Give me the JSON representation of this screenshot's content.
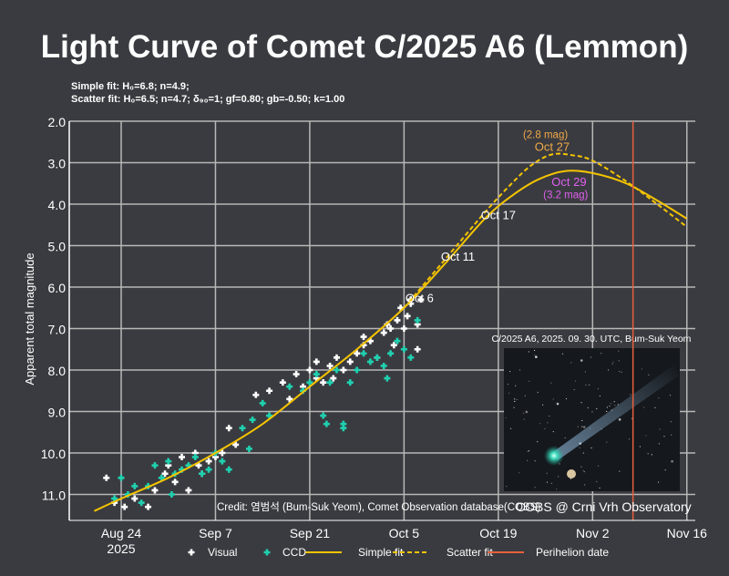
{
  "chart_data": {
    "type": "scatter",
    "title": "Light Curve of Comet C/2025 A6 (Lemmon)",
    "subtitle_lines": [
      "Simple fit: H₀=6.8; n=4.9;",
      "Scatter fit: H₀=6.5; n=4.7; δ₉₀=1; gf=0.80; gb=-0.50; k=1.00"
    ],
    "ylabel": "Apparent total magnitude",
    "xlabel": "",
    "x_units": "days since 2025-08-24",
    "xlim": [
      -8,
      85
    ],
    "ylim": [
      11.6,
      2.0
    ],
    "y_inverted": true,
    "grid": true,
    "y_ticks": [
      "2.0",
      "3.0",
      "4.0",
      "5.0",
      "6.0",
      "7.0",
      "8.0",
      "9.0",
      "10.0",
      "11.0"
    ],
    "x_ticks": [
      {
        "day": 0,
        "label": "Aug 24",
        "sublabel": "2025"
      },
      {
        "day": 14,
        "label": "Sep 7"
      },
      {
        "day": 28,
        "label": "Sep 21"
      },
      {
        "day": 42,
        "label": "Oct 5"
      },
      {
        "day": 56,
        "label": "Oct 19"
      },
      {
        "day": 70,
        "label": "Nov 2"
      },
      {
        "day": 84,
        "label": "Nov 16"
      }
    ],
    "series": [
      {
        "name": "Visual",
        "kind": "points",
        "color": "#ffffff",
        "points": [
          [
            -2.2,
            10.6
          ],
          [
            -1,
            11.2
          ],
          [
            0.5,
            11.3
          ],
          [
            2,
            11.1
          ],
          [
            4,
            11.3
          ],
          [
            5,
            10.9
          ],
          [
            6.5,
            10.5
          ],
          [
            7,
            10.3
          ],
          [
            8,
            10.7
          ],
          [
            9,
            10.1
          ],
          [
            10,
            10.9
          ],
          [
            11,
            10.0
          ],
          [
            11.5,
            10.3
          ],
          [
            12,
            10.5
          ],
          [
            13,
            10.2
          ],
          [
            14,
            10.1
          ],
          [
            15,
            10.0
          ],
          [
            16,
            9.4
          ],
          [
            17,
            9.8
          ],
          [
            20,
            8.6
          ],
          [
            22,
            8.5
          ],
          [
            24,
            8.3
          ],
          [
            25,
            8.7
          ],
          [
            26,
            8.1
          ],
          [
            27,
            8.4
          ],
          [
            28,
            8.0
          ],
          [
            29,
            8.2
          ],
          [
            29,
            7.8
          ],
          [
            30,
            8.3
          ],
          [
            31,
            7.9
          ],
          [
            31.5,
            8.2
          ],
          [
            32,
            7.7
          ],
          [
            33,
            8.0
          ],
          [
            34,
            7.8
          ],
          [
            35,
            7.6
          ],
          [
            36,
            7.4
          ],
          [
            36,
            7.2
          ],
          [
            37,
            7.3
          ],
          [
            38,
            7.7
          ],
          [
            39,
            7.1
          ],
          [
            39.5,
            6.9
          ],
          [
            40,
            7.0
          ],
          [
            40.5,
            7.4
          ],
          [
            41,
            6.8
          ],
          [
            41.5,
            6.5
          ],
          [
            42,
            7.0
          ],
          [
            42.5,
            6.7
          ],
          [
            43,
            6.4
          ],
          [
            43,
            6.3
          ],
          [
            44,
            6.9
          ],
          [
            44,
            7.5
          ],
          [
            44.5,
            6.3
          ]
        ]
      },
      {
        "name": "CCD",
        "kind": "points",
        "color": "#1fd1b0",
        "points": [
          [
            -1,
            11.1
          ],
          [
            0,
            10.6
          ],
          [
            1,
            11.0
          ],
          [
            2,
            10.8
          ],
          [
            3,
            11.2
          ],
          [
            4,
            10.8
          ],
          [
            5,
            10.3
          ],
          [
            6,
            10.6
          ],
          [
            7,
            10.2
          ],
          [
            7.5,
            11.0
          ],
          [
            8,
            10.5
          ],
          [
            9,
            10.4
          ],
          [
            10,
            10.3
          ],
          [
            11,
            10.1
          ],
          [
            12,
            10.5
          ],
          [
            13,
            10.4
          ],
          [
            14,
            10.0
          ],
          [
            15,
            10.2
          ],
          [
            16,
            10.4
          ],
          [
            18,
            9.4
          ],
          [
            19,
            9.9
          ],
          [
            19.5,
            9.2
          ],
          [
            21,
            8.8
          ],
          [
            22,
            9.1
          ],
          [
            25,
            8.4
          ],
          [
            27,
            8.5
          ],
          [
            28,
            8.3
          ],
          [
            29,
            8.1
          ],
          [
            30,
            9.1
          ],
          [
            30.5,
            9.3
          ],
          [
            31,
            8.3
          ],
          [
            32,
            8.0
          ],
          [
            33,
            9.4
          ],
          [
            33,
            9.3
          ],
          [
            34,
            8.3
          ],
          [
            35,
            8.0
          ],
          [
            36,
            7.6
          ],
          [
            37,
            7.8
          ],
          [
            38,
            7.7
          ],
          [
            39,
            7.9
          ],
          [
            39.5,
            8.2
          ],
          [
            40,
            7.6
          ],
          [
            41,
            7.3
          ],
          [
            42,
            7.5
          ],
          [
            43,
            7.7
          ],
          [
            44,
            6.8
          ]
        ]
      },
      {
        "name": "Simple fit",
        "kind": "line",
        "color": "#f5c400",
        "dash": false,
        "points": [
          [
            -4,
            11.4
          ],
          [
            0,
            11.1
          ],
          [
            7,
            10.6
          ],
          [
            14,
            10.0
          ],
          [
            21,
            9.3
          ],
          [
            28,
            8.4
          ],
          [
            35,
            7.5
          ],
          [
            42,
            6.5
          ],
          [
            48,
            5.45
          ],
          [
            54,
            4.35
          ],
          [
            58,
            3.8
          ],
          [
            62,
            3.4
          ],
          [
            66,
            3.2
          ],
          [
            70,
            3.25
          ],
          [
            75,
            3.5
          ],
          [
            80,
            3.95
          ],
          [
            84,
            4.35
          ]
        ]
      },
      {
        "name": "Scatter fit",
        "kind": "line",
        "color": "#f5c400",
        "dash": true,
        "points": [
          [
            42,
            6.5
          ],
          [
            48,
            5.35
          ],
          [
            54,
            4.2
          ],
          [
            58,
            3.5
          ],
          [
            61,
            3.05
          ],
          [
            64,
            2.8
          ],
          [
            67,
            2.82
          ],
          [
            70,
            2.95
          ],
          [
            75,
            3.45
          ],
          [
            80,
            4.05
          ],
          [
            84,
            4.55
          ]
        ]
      },
      {
        "name": "Perihelion date",
        "kind": "vline",
        "color": "#e8603c",
        "day": 76
      }
    ],
    "annotations": [
      {
        "text": "(2.8 mag)",
        "day": 63,
        "mag": 2.3,
        "color": "#f0a848"
      },
      {
        "text": "Oct 27",
        "day": 64,
        "mag": 2.6,
        "color": "#f0a848"
      },
      {
        "text": "Oct 29",
        "day": 66.5,
        "mag": 3.45,
        "color": "#e060f0"
      },
      {
        "text": "(3.2 mag)",
        "day": 66,
        "mag": 3.75,
        "color": "#e060f0"
      },
      {
        "text": "Oct 17",
        "day": 56,
        "mag": 4.25,
        "color": "#ffffff"
      },
      {
        "text": "Oct 11",
        "day": 50,
        "mag": 5.25,
        "color": "#ffffff"
      },
      {
        "text": "Oct 6",
        "day": 44.3,
        "mag": 6.25,
        "color": "#ffffff"
      }
    ],
    "legend": {
      "placement": "bottom",
      "items": [
        "Visual",
        "CCD",
        "Simple fit",
        "Scatter fit",
        "Perihelion date"
      ]
    }
  },
  "inset": {
    "caption": "C/2025 A6, 2025. 09. 30. UTC, Bum-Suk Yeom"
  },
  "credit": "Credit: 염범석 (Bum-Suk Yeom), Comet Observation database(COBS)",
  "source": "COBS @ Crni Vrh Observatory"
}
